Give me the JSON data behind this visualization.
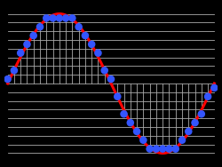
{
  "background_color": "#000000",
  "grid_color": "#aaaaaa",
  "sine_color": "#ff0000",
  "dot_color": "#3355ff",
  "n_quantization_levels": 16,
  "n_samples": 32,
  "sine_amplitude": 1.0,
  "figsize": [
    2.5,
    1.88
  ],
  "dpi": 100,
  "line_width": 2.2,
  "dot_size": 38,
  "grid_linewidth": 0.6
}
